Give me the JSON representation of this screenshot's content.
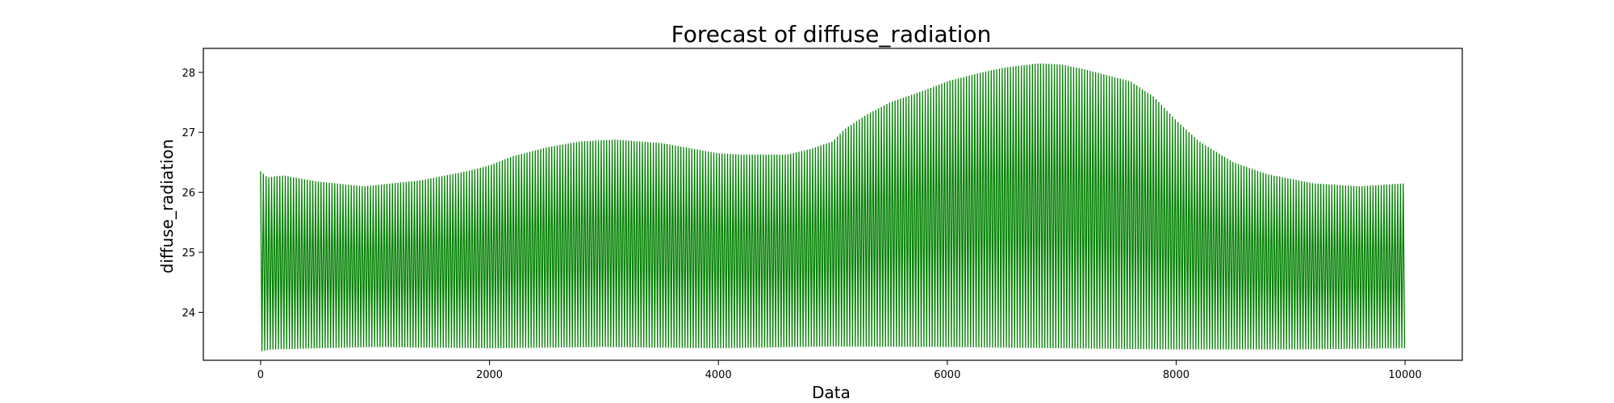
{
  "chart_data": {
    "type": "line",
    "title": "Forecast of diffuse_radiation",
    "xlabel": "Data",
    "ylabel": "diffuse_radiation",
    "xlim": [
      -500,
      10500
    ],
    "ylim": [
      23.2,
      28.4
    ],
    "xticks": [
      0,
      2000,
      4000,
      6000,
      8000,
      10000
    ],
    "xtick_labels": [
      "0",
      "2000",
      "4000",
      "6000",
      "8000",
      "10000"
    ],
    "yticks": [
      24,
      25,
      26,
      27,
      28
    ],
    "ytick_labels": [
      "24",
      "25",
      "26",
      "27",
      "28"
    ],
    "grid": false,
    "legend": "none",
    "color": "#008000",
    "series": [
      {
        "x_range": [
          0,
          10000
        ],
        "oscillation_period": 24,
        "upper_envelope": {
          "x": [
            0,
            60,
            200,
            500,
            900,
            1400,
            1800,
            2000,
            2200,
            2500,
            2800,
            3100,
            3500,
            3800,
            4000,
            4200,
            4600,
            4800,
            5000,
            5100,
            5300,
            5500,
            5800,
            6000,
            6300,
            6500,
            6800,
            7000,
            7200,
            7400,
            7600,
            7800,
            8000,
            8200,
            8500,
            8800,
            9200,
            9600,
            10000
          ],
          "y": [
            26.35,
            26.25,
            26.28,
            26.18,
            26.1,
            26.2,
            26.35,
            26.45,
            26.6,
            26.75,
            26.85,
            26.88,
            26.82,
            26.72,
            26.65,
            26.63,
            26.63,
            26.72,
            26.85,
            27.05,
            27.3,
            27.5,
            27.7,
            27.85,
            28.0,
            28.08,
            28.15,
            28.13,
            28.05,
            27.95,
            27.85,
            27.6,
            27.2,
            26.85,
            26.5,
            26.3,
            26.15,
            26.1,
            26.15
          ]
        },
        "lower_envelope": {
          "x": [
            0,
            100,
            500,
            1000,
            2000,
            3000,
            4000,
            5000,
            6000,
            7000,
            8000,
            9000,
            10000
          ],
          "y": [
            23.35,
            23.38,
            23.4,
            23.42,
            23.4,
            23.42,
            23.4,
            23.43,
            23.42,
            23.4,
            23.38,
            23.38,
            23.4
          ]
        }
      }
    ]
  }
}
